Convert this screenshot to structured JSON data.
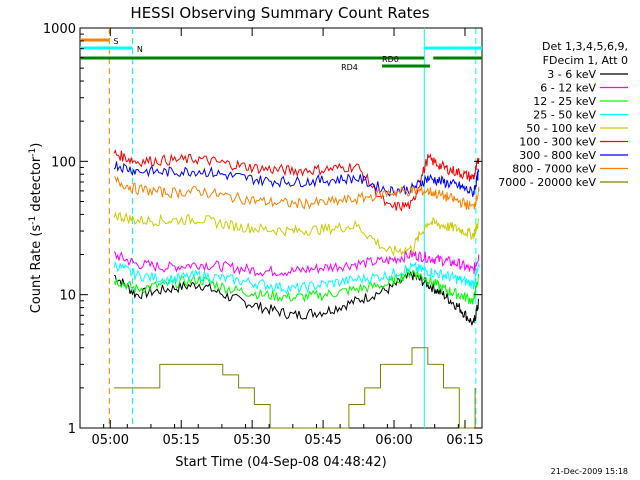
{
  "chart_data": {
    "type": "line",
    "title": "HESSI Observing Summary Count Rates",
    "xlabel": "Start Time (04-Sep-08 04:48:42)",
    "ylabel_main": "Count Rate (s",
    "ylabel_sup1": "-1",
    "ylabel_mid": " detector",
    "ylabel_sup2": "-1",
    "ylabel_end": ")",
    "xlim": [
      288,
      5388
    ],
    "ylim": [
      1,
      1000
    ],
    "yscale": "log",
    "x_ticks": [
      {
        "t": 672,
        "label": "05:00"
      },
      {
        "t": 1572,
        "label": "05:15"
      },
      {
        "t": 2472,
        "label": "05:30"
      },
      {
        "t": 3372,
        "label": "05:45"
      },
      {
        "t": 4272,
        "label": "06:00"
      },
      {
        "t": 5172,
        "label": "06:15"
      }
    ],
    "y_ticks": [
      {
        "v": 1,
        "label": "1"
      },
      {
        "v": 10,
        "label": "10"
      },
      {
        "v": 100,
        "label": "100"
      },
      {
        "v": 1000,
        "label": "1000"
      }
    ],
    "legend": {
      "header1": "Det 1,3,4,5,6,9,",
      "header2": "FDecim 1, Att 0",
      "placement": "right"
    },
    "series": [
      {
        "name": "3 - 6 keV",
        "color": "#000000",
        "x": [
          720,
          1000,
          1400,
          1800,
          2200,
          2600,
          3000,
          3400,
          3800,
          4200,
          4500,
          4700,
          4900,
          5100,
          5280,
          5350
        ],
        "y": [
          14,
          10,
          11,
          12,
          9.5,
          8,
          7,
          7.5,
          9,
          11,
          14,
          12,
          10,
          8,
          6,
          9
        ]
      },
      {
        "name": "6 - 12 keV",
        "color": "#ff00ff",
        "x": [
          720,
          1000,
          1400,
          1800,
          2200,
          2600,
          3000,
          3400,
          3800,
          4200,
          4500,
          4700,
          4900,
          5100,
          5280,
          5350
        ],
        "y": [
          20,
          17,
          16,
          17,
          16,
          15,
          15,
          16,
          17,
          18,
          20,
          19,
          18,
          17,
          15,
          20
        ]
      },
      {
        "name": "12 - 25 keV",
        "color": "#00ff00",
        "x": [
          720,
          1000,
          1400,
          1800,
          2200,
          2600,
          3000,
          3400,
          3800,
          4200,
          4500,
          4700,
          4900,
          5100,
          5280,
          5350
        ],
        "y": [
          13,
          11,
          12,
          13,
          11,
          10,
          9.5,
          10,
          11,
          12,
          15,
          13,
          11,
          10,
          9,
          14
        ]
      },
      {
        "name": "25 - 50 keV",
        "color": "#00ffff",
        "x": [
          720,
          1000,
          1400,
          1800,
          2200,
          2600,
          3000,
          3400,
          3800,
          4200,
          4500,
          4700,
          4900,
          5100,
          5280,
          5350
        ],
        "y": [
          17,
          14,
          13,
          14,
          13,
          12,
          11,
          12,
          13,
          14,
          16,
          15,
          14,
          13,
          12,
          16
        ]
      },
      {
        "name": "50 - 100 keV",
        "color": "#cccc00",
        "x": [
          720,
          1000,
          1400,
          1800,
          2200,
          2600,
          3000,
          3400,
          3800,
          4200,
          4500,
          4700,
          4900,
          5100,
          5280,
          5350
        ],
        "y": [
          40,
          36,
          36,
          37,
          33,
          31,
          30,
          31,
          33,
          21,
          22,
          35,
          33,
          31,
          28,
          36
        ]
      },
      {
        "name": "100 - 300 keV",
        "color": "#ff0000",
        "x": [
          720,
          1000,
          1400,
          1800,
          2200,
          2600,
          3000,
          3400,
          3800,
          4200,
          4500,
          4700,
          4900,
          5100,
          5280,
          5350
        ],
        "y": [
          115,
          100,
          102,
          104,
          95,
          88,
          85,
          87,
          92,
          45,
          47,
          105,
          90,
          82,
          75,
          105
        ]
      },
      {
        "name": "300 - 800 keV",
        "color": "#0000ff",
        "x": [
          720,
          1000,
          1400,
          1800,
          2200,
          2600,
          3000,
          3400,
          3800,
          4200,
          4500,
          4700,
          4900,
          5100,
          5280,
          5350
        ],
        "y": [
          95,
          85,
          83,
          85,
          78,
          72,
          70,
          72,
          75,
          60,
          62,
          75,
          70,
          65,
          58,
          85
        ]
      },
      {
        "name": "800 - 7000 keV",
        "color": "#ff8000",
        "x": [
          720,
          1000,
          1400,
          1800,
          2200,
          2600,
          3000,
          3400,
          3800,
          4200,
          4500,
          4700,
          4900,
          5100,
          5280,
          5350
        ],
        "y": [
          72,
          62,
          58,
          60,
          54,
          50,
          48,
          49,
          52,
          58,
          60,
          60,
          55,
          50,
          45,
          60
        ]
      },
      {
        "name": "7000 - 20000 keV",
        "color": "#808000",
        "x": [
          720,
          900,
          1100,
          1300,
          1500,
          1700,
          1900,
          2100,
          2300,
          2500,
          2700,
          2900,
          3100,
          3300,
          3500,
          3700,
          3900,
          4100,
          4300,
          4500,
          4700,
          4900,
          5100,
          5300
        ],
        "y": [
          2,
          2,
          2,
          3,
          3,
          3,
          3,
          2.5,
          2,
          1.5,
          1,
          1,
          1,
          1,
          1,
          1.5,
          2,
          3,
          3,
          4,
          3,
          2,
          1,
          2
        ]
      }
    ],
    "vlines": [
      {
        "t": 660,
        "color": "#ff8000",
        "style": "dashed"
      },
      {
        "t": 954,
        "color": "#00ffff",
        "style": "dashed"
      },
      {
        "t": 4656,
        "color": "#00ffff",
        "style": "solid"
      },
      {
        "t": 5310,
        "color": "#00ffff",
        "style": "dashed"
      }
    ],
    "bars": [
      {
        "label": "S",
        "color": "#ff8000",
        "start": 288,
        "end": 660,
        "level": 0
      },
      {
        "label": "N",
        "color": "#00ffff",
        "start": 288,
        "end": 954,
        "level": 1
      },
      {
        "label": "N",
        "color": "#00ffff",
        "start": 4656,
        "end": 5388,
        "level": 1
      },
      {
        "label": "RD0",
        "color": "#008000",
        "start": 288,
        "end": 4656,
        "level": 2
      },
      {
        "label": "RD0",
        "color": "#008000",
        "start": 4770,
        "end": 5388,
        "level": 2
      },
      {
        "label": "RD4",
        "color": "#008000",
        "start": 4120,
        "end": 4728,
        "level": 3
      }
    ],
    "bar_labels": [
      {
        "text": "S",
        "t": 712,
        "level": 0
      },
      {
        "text": "N",
        "t": 1010,
        "level": 1
      },
      {
        "text": "RD0",
        "t": 4120,
        "level": 2
      },
      {
        "text": "RD4",
        "t": 3600,
        "level": 3
      }
    ]
  },
  "footer_date": "21-Dec-2009 15:18"
}
